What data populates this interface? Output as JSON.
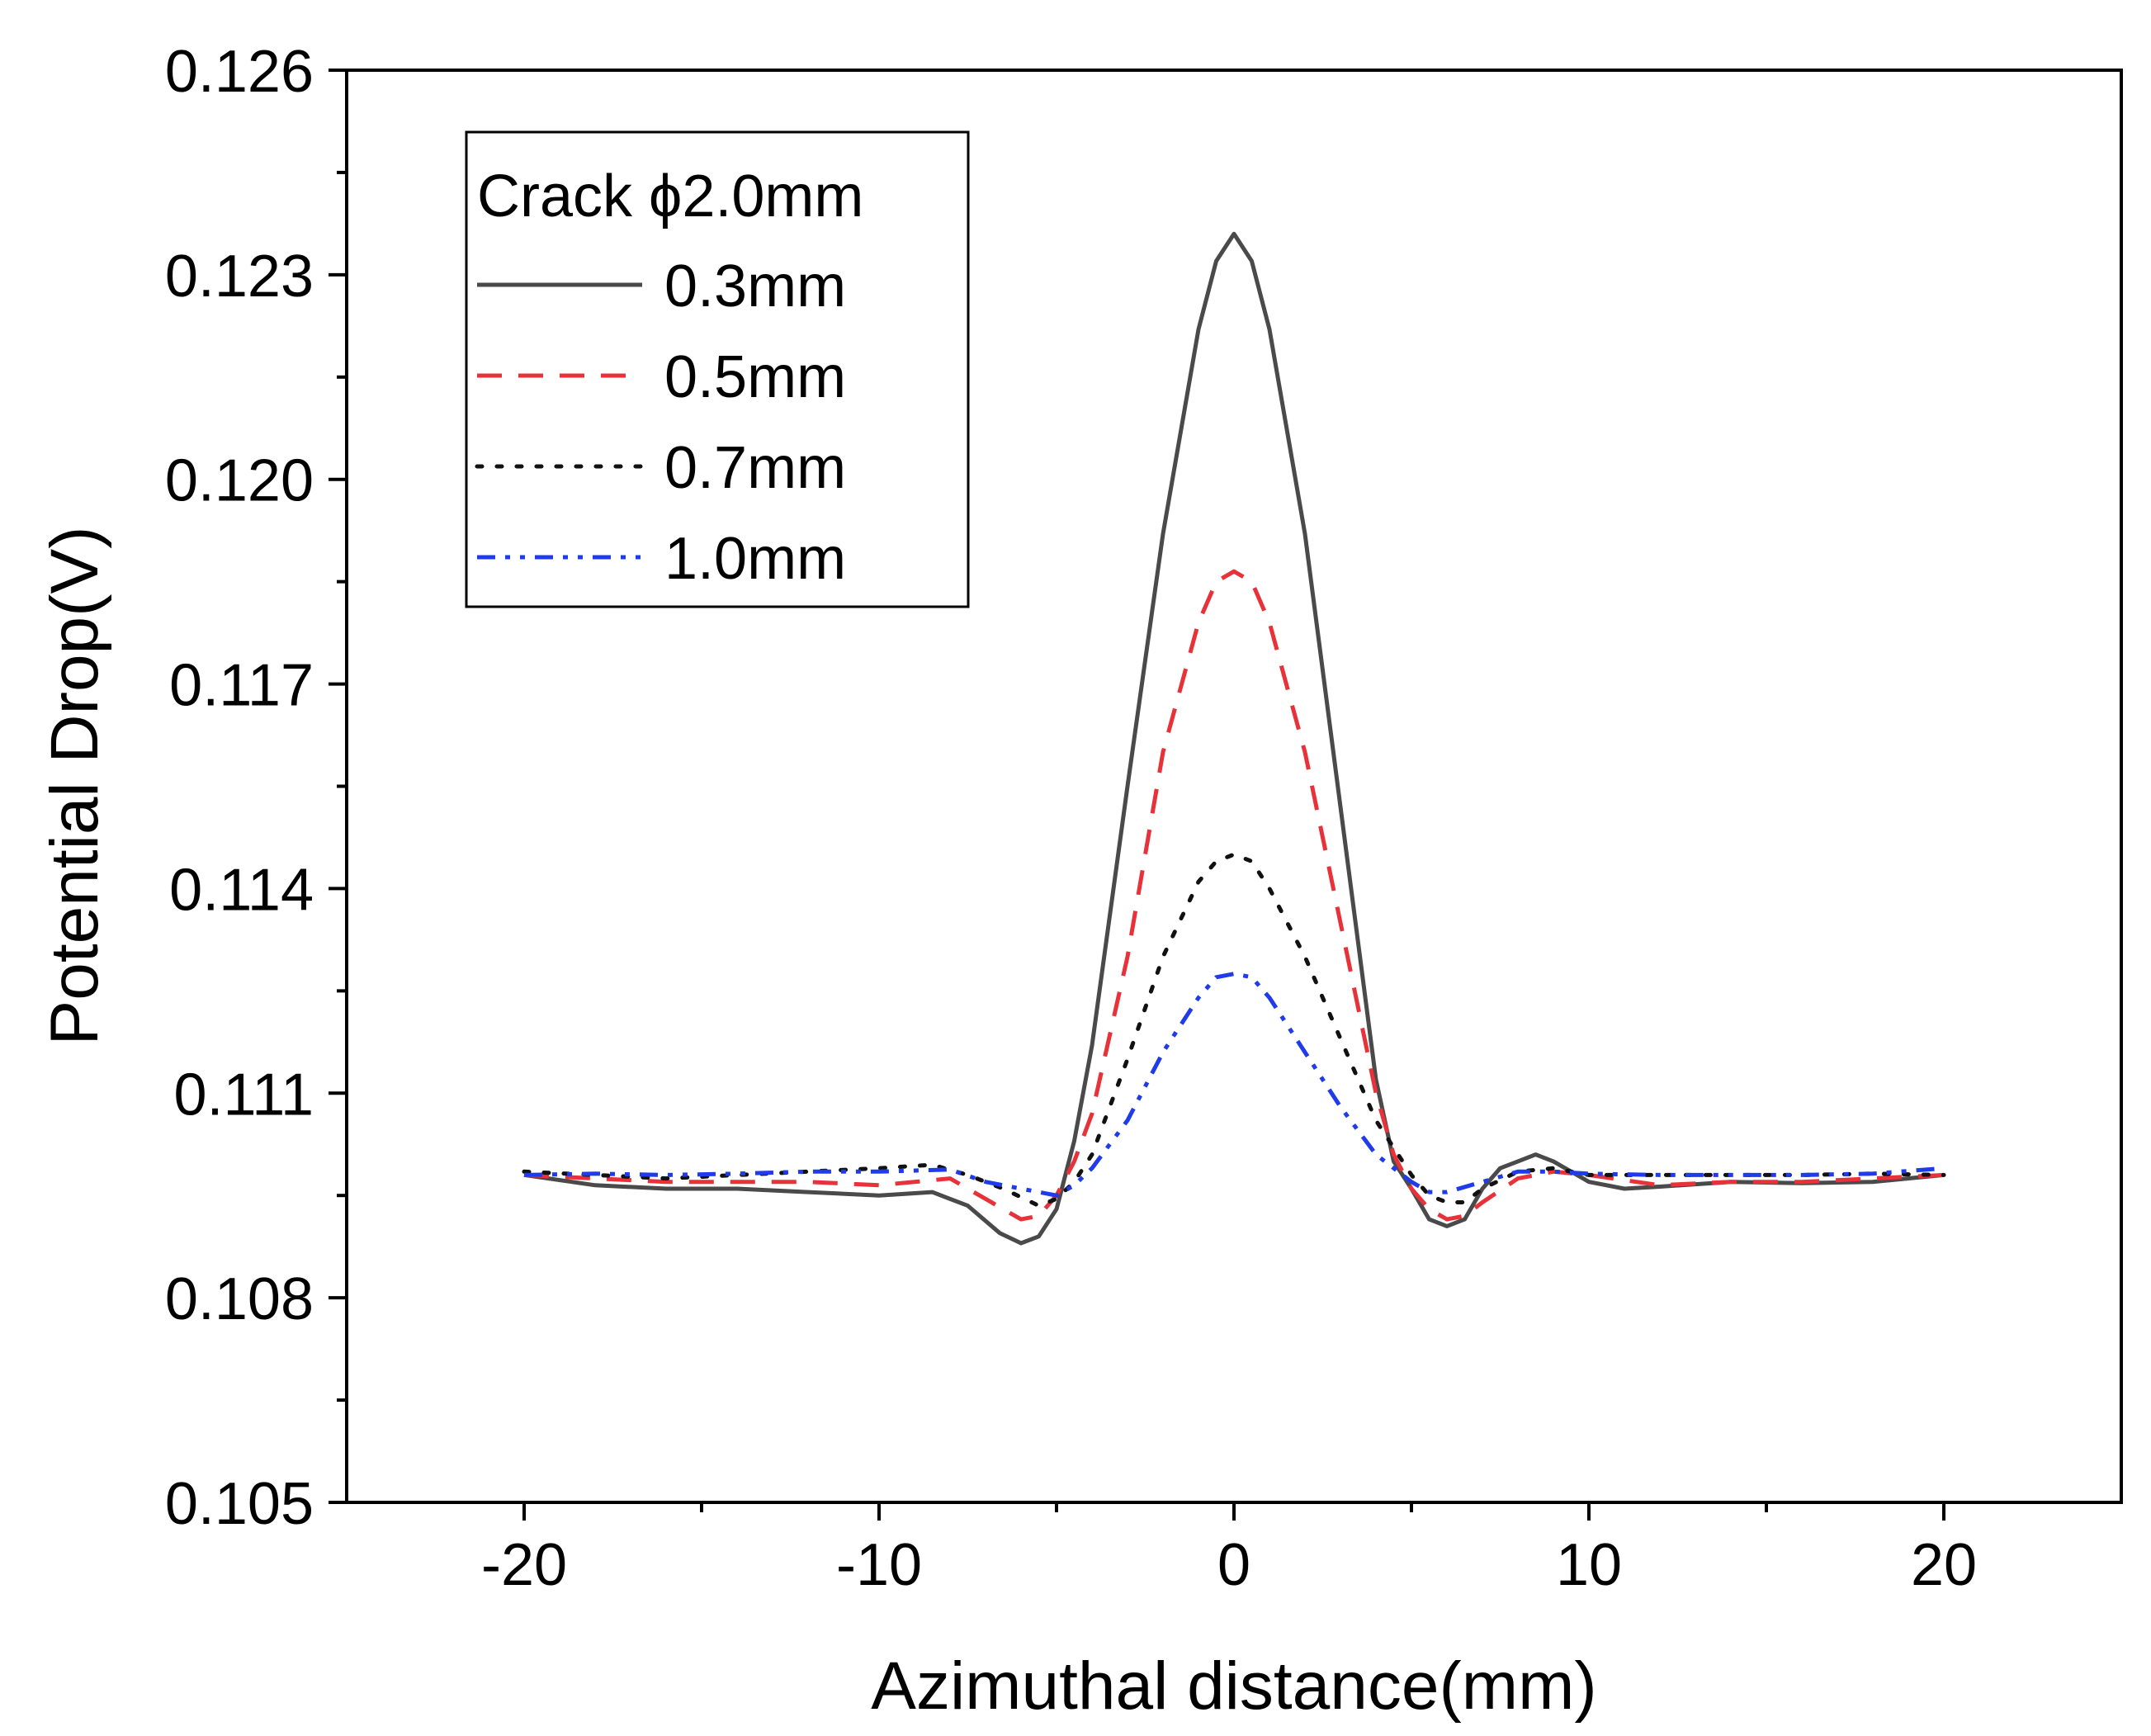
{
  "chart_data": {
    "type": "line",
    "xlabel": "Azimuthal distance(mm)",
    "ylabel": "Potential Drop(V)",
    "xlim": [
      -25,
      25
    ],
    "ylim": [
      0.105,
      0.126
    ],
    "x_ticks": [
      "-20",
      "-10",
      "0",
      "10",
      "20"
    ],
    "y_ticks": [
      "0.105",
      "0.108",
      "0.111",
      "0.114",
      "0.117",
      "0.120",
      "0.123",
      "0.126"
    ],
    "legend_title": "Crack ϕ2.0mm",
    "legend_position": "top-left",
    "series": [
      {
        "name": "0.3mm",
        "color": "#4a4a4a",
        "dash": "solid",
        "points": [
          [
            -20,
            0.1098
          ],
          [
            -18,
            0.10965
          ],
          [
            -16,
            0.1096
          ],
          [
            -14,
            0.1096
          ],
          [
            -12,
            0.10955
          ],
          [
            -10,
            0.1095
          ],
          [
            -8.5,
            0.10955
          ],
          [
            -7.5,
            0.10935
          ],
          [
            -6.6,
            0.10895
          ],
          [
            -6,
            0.1088
          ],
          [
            -5.5,
            0.1089
          ],
          [
            -5,
            0.1093
          ],
          [
            -4.5,
            0.1103
          ],
          [
            -4,
            0.1117
          ],
          [
            -3,
            0.1155
          ],
          [
            -2,
            0.1192
          ],
          [
            -1,
            0.1222
          ],
          [
            -0.5,
            0.1232
          ],
          [
            0,
            0.1236
          ],
          [
            0.5,
            0.1232
          ],
          [
            1,
            0.1222
          ],
          [
            2,
            0.1192
          ],
          [
            3,
            0.1152
          ],
          [
            4,
            0.1112
          ],
          [
            4.5,
            0.11
          ],
          [
            5,
            0.1096
          ],
          [
            5.5,
            0.10915
          ],
          [
            6,
            0.10905
          ],
          [
            6.5,
            0.10915
          ],
          [
            7,
            0.1096
          ],
          [
            7.5,
            0.1099
          ],
          [
            8,
            0.11
          ],
          [
            8.5,
            0.1101
          ],
          [
            9,
            0.11
          ],
          [
            10,
            0.1097
          ],
          [
            11,
            0.1096
          ],
          [
            12,
            0.10963
          ],
          [
            14,
            0.1097
          ],
          [
            16,
            0.10968
          ],
          [
            18,
            0.1097
          ],
          [
            20,
            0.1098
          ]
        ]
      },
      {
        "name": "0.5mm",
        "color": "#e8323a",
        "dash": "dashed",
        "points": [
          [
            -20,
            0.1098
          ],
          [
            -18,
            0.10975
          ],
          [
            -16,
            0.1097
          ],
          [
            -14,
            0.1097
          ],
          [
            -12,
            0.1097
          ],
          [
            -10,
            0.10965
          ],
          [
            -8,
            0.10975
          ],
          [
            -7,
            0.10945
          ],
          [
            -6,
            0.10915
          ],
          [
            -5.5,
            0.1092
          ],
          [
            -5,
            0.1095
          ],
          [
            -4.5,
            0.11
          ],
          [
            -4,
            0.1107
          ],
          [
            -3,
            0.113
          ],
          [
            -2,
            0.116
          ],
          [
            -1,
            0.1179
          ],
          [
            -0.5,
            0.1185
          ],
          [
            0,
            0.11865
          ],
          [
            0.5,
            0.1185
          ],
          [
            1,
            0.1179
          ],
          [
            2,
            0.116
          ],
          [
            3,
            0.1135
          ],
          [
            4,
            0.111
          ],
          [
            4.5,
            0.1101
          ],
          [
            5,
            0.1096
          ],
          [
            5.5,
            0.1093
          ],
          [
            6,
            0.10915
          ],
          [
            6.5,
            0.1092
          ],
          [
            7,
            0.1094
          ],
          [
            8,
            0.10975
          ],
          [
            9,
            0.10985
          ],
          [
            10,
            0.1098
          ],
          [
            12,
            0.10965
          ],
          [
            14,
            0.1097
          ],
          [
            16,
            0.1097
          ],
          [
            18,
            0.10975
          ],
          [
            20,
            0.1098
          ]
        ]
      },
      {
        "name": "0.7mm",
        "color": "#111111",
        "dash": "dotted",
        "points": [
          [
            -20,
            0.10985
          ],
          [
            -18,
            0.1098
          ],
          [
            -16,
            0.10975
          ],
          [
            -14,
            0.1098
          ],
          [
            -12,
            0.10985
          ],
          [
            -10,
            0.1099
          ],
          [
            -8.5,
            0.10995
          ],
          [
            -7.5,
            0.1098
          ],
          [
            -6.5,
            0.1096
          ],
          [
            -5.5,
            0.10935
          ],
          [
            -5,
            0.10945
          ],
          [
            -4.5,
            0.1097
          ],
          [
            -4,
            0.1101
          ],
          [
            -3,
            0.1115
          ],
          [
            -2,
            0.113
          ],
          [
            -1,
            0.1141
          ],
          [
            -0.5,
            0.1144
          ],
          [
            0,
            0.1145
          ],
          [
            0.5,
            0.1144
          ],
          [
            1,
            0.114
          ],
          [
            2,
            0.113
          ],
          [
            3,
            0.1118
          ],
          [
            4,
            0.1106
          ],
          [
            5,
            0.1098
          ],
          [
            5.5,
            0.1095
          ],
          [
            6,
            0.1094
          ],
          [
            6.5,
            0.1094
          ],
          [
            7,
            0.1096
          ],
          [
            8,
            0.10985
          ],
          [
            9,
            0.1099
          ],
          [
            10,
            0.1098
          ],
          [
            12,
            0.1098
          ],
          [
            14,
            0.1098
          ],
          [
            16,
            0.1098
          ],
          [
            18,
            0.10982
          ],
          [
            20,
            0.1098
          ]
        ]
      },
      {
        "name": "1.0mm",
        "color": "#1f3bea",
        "dash": "dashdotdot",
        "points": [
          [
            -20,
            0.1098
          ],
          [
            -18,
            0.10982
          ],
          [
            -16,
            0.1098
          ],
          [
            -14,
            0.10982
          ],
          [
            -12,
            0.10985
          ],
          [
            -10,
            0.10985
          ],
          [
            -8,
            0.10988
          ],
          [
            -7,
            0.1097
          ],
          [
            -6,
            0.1096
          ],
          [
            -5,
            0.1095
          ],
          [
            -4.5,
            0.10965
          ],
          [
            -4,
            0.1099
          ],
          [
            -3,
            0.1106
          ],
          [
            -2,
            0.1116
          ],
          [
            -1,
            0.1124
          ],
          [
            -0.5,
            0.1127
          ],
          [
            0,
            0.11275
          ],
          [
            0.5,
            0.1127
          ],
          [
            1,
            0.1124
          ],
          [
            2,
            0.1116
          ],
          [
            3,
            0.1108
          ],
          [
            4,
            0.1101
          ],
          [
            5,
            0.1097
          ],
          [
            5.5,
            0.10955
          ],
          [
            6,
            0.10955
          ],
          [
            7,
            0.1097
          ],
          [
            8,
            0.10985
          ],
          [
            9,
            0.10985
          ],
          [
            10,
            0.10982
          ],
          [
            12,
            0.1098
          ],
          [
            14,
            0.1098
          ],
          [
            16,
            0.1098
          ],
          [
            18,
            0.10982
          ],
          [
            20,
            0.1099
          ]
        ]
      }
    ]
  }
}
